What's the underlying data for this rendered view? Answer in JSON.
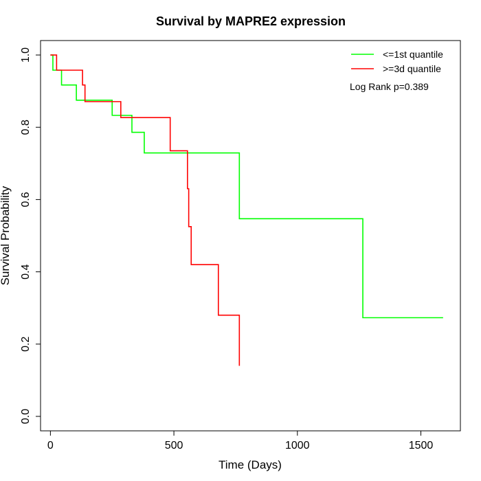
{
  "chart_data": {
    "type": "line",
    "title": "Survival by MAPRE2 expression",
    "xlabel": "Time (Days)",
    "ylabel": "Survival Probability",
    "xlim": [
      -40,
      1660
    ],
    "ylim": [
      -0.04,
      1.04
    ],
    "xticks": [
      0,
      500,
      1000,
      1500
    ],
    "yticks": [
      0.0,
      0.2,
      0.4,
      0.6,
      0.8,
      1.0
    ],
    "xtick_labels": [
      "0",
      "500",
      "1000",
      "1500"
    ],
    "ytick_labels": [
      "0.0",
      "0.2",
      "0.4",
      "0.6",
      "0.8",
      "1.0"
    ],
    "grid": false,
    "legend_position": "top-right",
    "annotation": "Log Rank p=0.389",
    "series": [
      {
        "name": "<=1st quantile",
        "color": "#00ff00",
        "step_points": [
          [
            0,
            1.0
          ],
          [
            10,
            0.958
          ],
          [
            45,
            0.917
          ],
          [
            105,
            0.875
          ],
          [
            250,
            0.833
          ],
          [
            330,
            0.786
          ],
          [
            380,
            0.729
          ],
          [
            765,
            0.547
          ],
          [
            1265,
            0.273
          ],
          [
            1590,
            0.273
          ]
        ]
      },
      {
        "name": ">=3d quantile",
        "color": "#ff0000",
        "step_points": [
          [
            0,
            1.0
          ],
          [
            25,
            0.958
          ],
          [
            130,
            0.917
          ],
          [
            140,
            0.871
          ],
          [
            285,
            0.827
          ],
          [
            485,
            0.735
          ],
          [
            555,
            0.63
          ],
          [
            560,
            0.525
          ],
          [
            570,
            0.42
          ],
          [
            680,
            0.28
          ],
          [
            765,
            0.14
          ]
        ]
      }
    ]
  }
}
